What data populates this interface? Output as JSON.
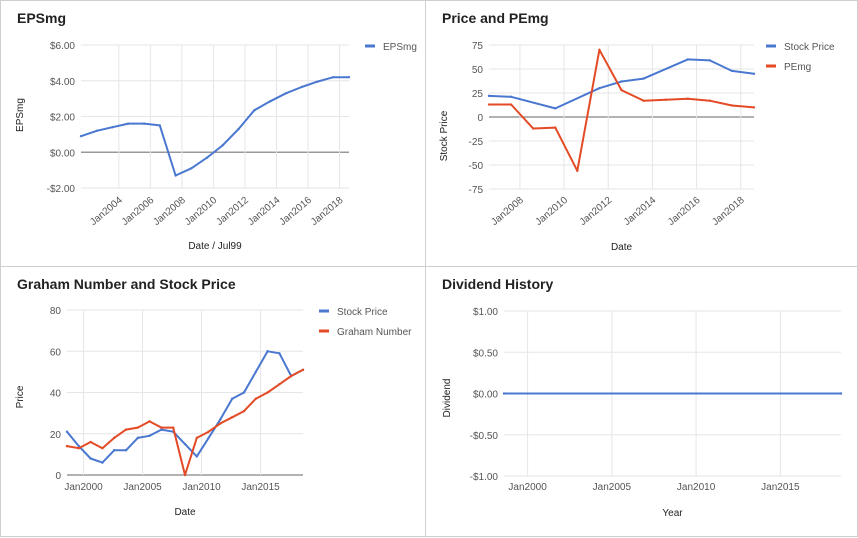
{
  "colors": {
    "blue": "#4A78D0",
    "red": "#E34A25",
    "grid": "#e6e6e6",
    "axis": "#999999",
    "text": "#555555",
    "title": "#222222"
  },
  "chart_data": [
    {
      "type": "line",
      "title": "EPSmg",
      "xlabel": "Date / Jul99",
      "ylabel": "EPSmg",
      "x_type": "year",
      "xlim": [
        2001.6,
        2018.6
      ],
      "ylim": [
        -2,
        6
      ],
      "y_ticks": [
        -2,
        0,
        2,
        4,
        6
      ],
      "y_tick_labels": [
        "-$2.00",
        "$0.00",
        "$2.00",
        "$4.00",
        "$6.00"
      ],
      "x_ticks": [
        2004,
        2006,
        2008,
        2010,
        2012,
        2014,
        2016,
        2018
      ],
      "x_tick_labels": [
        "Jan2004",
        "Jan2006",
        "Jan2008",
        "Jan2010",
        "Jan2012",
        "Jan2014",
        "Jan2016",
        "Jan2018"
      ],
      "legend_position": "top-right",
      "grid": true,
      "series": [
        {
          "name": "EPSmg",
          "color_key": "blue",
          "x": [
            2001.6,
            2002.6,
            2003.6,
            2004.6,
            2005.6,
            2006.6,
            2007.6,
            2008.6,
            2009.6,
            2010.6,
            2011.6,
            2012.6,
            2013.6,
            2014.6,
            2015.6,
            2016.6,
            2017.6,
            2018.6
          ],
          "y": [
            0.9,
            1.2,
            1.4,
            1.6,
            1.6,
            1.5,
            -1.3,
            -0.9,
            -0.3,
            0.4,
            1.3,
            2.35,
            2.85,
            3.3,
            3.65,
            3.95,
            4.2,
            4.2
          ]
        }
      ]
    },
    {
      "type": "line",
      "title": "Price and PEmg",
      "xlabel": "Date",
      "ylabel": "Stock Price",
      "x_type": "year",
      "xlim": [
        2006.6,
        2018.6
      ],
      "ylim": [
        -75,
        75
      ],
      "y_ticks": [
        -75,
        -50,
        -25,
        0,
        25,
        50,
        75
      ],
      "y_tick_labels": [
        "-75",
        "-50",
        "-25",
        "0",
        "25",
        "50",
        "75"
      ],
      "x_ticks": [
        2008,
        2010,
        2012,
        2014,
        2016,
        2018
      ],
      "x_tick_labels": [
        "Jan2008",
        "Jan2010",
        "Jan2012",
        "Jan2014",
        "Jan2016",
        "Jan2018"
      ],
      "legend_position": "top-right",
      "grid": true,
      "series": [
        {
          "name": "Stock Price",
          "color_key": "blue",
          "x": [
            2006.6,
            2007.6,
            2009.6,
            2011.6,
            2012.6,
            2013.6,
            2015.6,
            2016.6,
            2017.6,
            2018.6
          ],
          "y": [
            22,
            21,
            9,
            30,
            37,
            40,
            60,
            59,
            48,
            45
          ]
        },
        {
          "name": "PEmg",
          "color_key": "red",
          "x": [
            2006.6,
            2007.6,
            2008.6,
            2009.6,
            2010.6,
            2011.6,
            2012.6,
            2013.6,
            2014.6,
            2015.6,
            2016.6,
            2017.6,
            2018.6
          ],
          "y": [
            13,
            13,
            -12,
            -11,
            -56,
            70,
            28,
            17,
            18,
            19,
            17,
            12,
            10
          ]
        }
      ]
    },
    {
      "type": "line",
      "title": "Graham Number and Stock Price",
      "xlabel": "Date",
      "ylabel": "Price",
      "x_type": "year",
      "xlim": [
        1998.6,
        2018.6
      ],
      "ylim": [
        0,
        80
      ],
      "y_ticks": [
        0,
        20,
        40,
        60,
        80
      ],
      "y_tick_labels": [
        "0",
        "20",
        "40",
        "60",
        "80"
      ],
      "x_ticks": [
        2000,
        2005,
        2010,
        2015
      ],
      "x_tick_labels": [
        "Jan2000",
        "Jan2005",
        "Jan2010",
        "Jan2015"
      ],
      "legend_position": "top-right",
      "grid": true,
      "series": [
        {
          "name": "Stock Price",
          "color_key": "blue",
          "x": [
            1998.6,
            1999.6,
            2000.6,
            2001.6,
            2002.6,
            2003.6,
            2004.6,
            2005.6,
            2006.6,
            2007.6,
            2008.6,
            2009.6,
            2010.6,
            2011.6,
            2012.6,
            2013.6,
            2014.6,
            2015.6,
            2016.6,
            2017.6,
            2018.6
          ],
          "y": [
            21,
            14,
            8,
            6,
            12,
            12,
            18,
            19,
            22,
            21,
            15,
            9,
            18,
            27,
            37,
            40,
            50,
            60,
            59,
            48,
            51
          ]
        },
        {
          "name": "Graham Number",
          "color_key": "red",
          "x": [
            1998.6,
            1999.6,
            2000.6,
            2001.6,
            2002.6,
            2003.6,
            2004.6,
            2005.6,
            2006.6,
            2007.6,
            2008.6,
            2009.6,
            2010.6,
            2011.6,
            2012.6,
            2013.6,
            2014.6,
            2015.6,
            2016.6,
            2017.6,
            2018.6
          ],
          "y": [
            14,
            13,
            16,
            13,
            18,
            22,
            23,
            26,
            23,
            23,
            0,
            18,
            21,
            25,
            28,
            31,
            37,
            40,
            44,
            48,
            51
          ]
        }
      ]
    },
    {
      "type": "line",
      "title": "Dividend History",
      "xlabel": "Year",
      "ylabel": "Dividend",
      "x_type": "year",
      "xlim": [
        1998.6,
        2018.6
      ],
      "ylim": [
        -1,
        1
      ],
      "y_ticks": [
        -1,
        -0.5,
        0,
        0.5,
        1
      ],
      "y_tick_labels": [
        "-$1.00",
        "-$0.50",
        "$0.00",
        "$0.50",
        "$1.00"
      ],
      "x_ticks": [
        2000,
        2005,
        2010,
        2015
      ],
      "x_tick_labels": [
        "Jan2000",
        "Jan2005",
        "Jan2010",
        "Jan2015"
      ],
      "grid": true,
      "series": [
        {
          "color_key": "blue",
          "x": [
            1998.6,
            2018.6
          ],
          "y": [
            0,
            0
          ]
        }
      ]
    }
  ]
}
